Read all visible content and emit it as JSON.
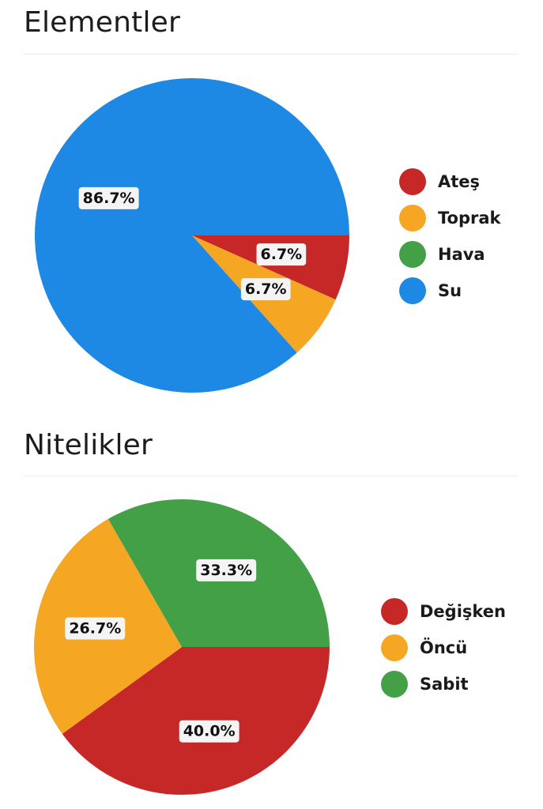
{
  "colors": {
    "red": "#c62828",
    "orange": "#f5a623",
    "green": "#43a047",
    "blue": "#1e88e5"
  },
  "chart_data": [
    {
      "type": "pie",
      "title": "Elementler",
      "legend_position": "right",
      "categories": [
        "Ateş",
        "Toprak",
        "Hava",
        "Su"
      ],
      "values": [
        6.7,
        6.7,
        0,
        86.7
      ],
      "labels": [
        "6.7%",
        "6.7%",
        "",
        "86.7%"
      ],
      "colors": [
        "#c62828",
        "#f5a623",
        "#43a047",
        "#1e88e5"
      ]
    },
    {
      "type": "pie",
      "title": "Nitelikler",
      "legend_position": "right",
      "categories": [
        "Değişken",
        "Öncü",
        "Sabit"
      ],
      "values": [
        40.0,
        26.7,
        33.3
      ],
      "labels": [
        "40.0%",
        "26.7%",
        "33.3%"
      ],
      "colors": [
        "#c62828",
        "#f5a623",
        "#43a047"
      ]
    }
  ]
}
